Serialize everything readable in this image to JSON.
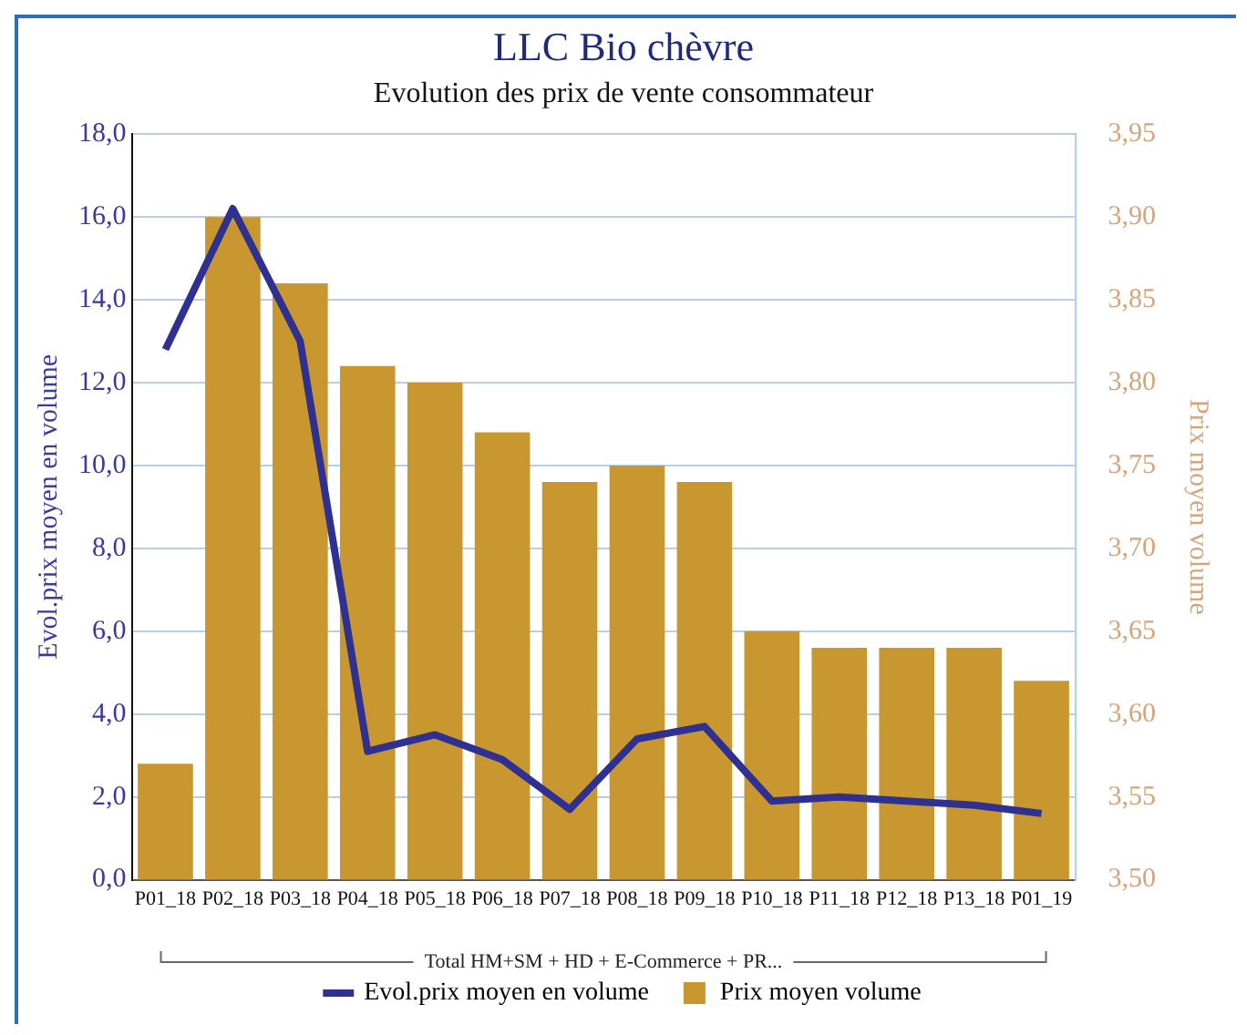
{
  "chart_data": {
    "type": "bar",
    "title": "LLC Bio chèvre",
    "subtitle": "Evolution des prix de vente consommateur",
    "ylabel": "Evol.prix moyen en volume",
    "y2label": "Prix moyen volume",
    "categories": [
      "P01_18",
      "P02_18",
      "P03_18",
      "P04_18",
      "P05_18",
      "P06_18",
      "P07_18",
      "P08_18",
      "P09_18",
      "P10_18",
      "P11_18",
      "P12_18",
      "P13_18",
      "P01_19"
    ],
    "series": [
      {
        "name": "Evol.prix moyen en volume",
        "type": "line",
        "color": "#2e3192",
        "values": [
          12.8,
          16.2,
          13.0,
          3.1,
          3.5,
          2.9,
          1.7,
          3.4,
          3.7,
          1.9,
          2.0,
          1.9,
          1.8,
          1.6
        ]
      },
      {
        "name": "Prix moyen volume",
        "axis": "y2",
        "color": "#c9972f",
        "values": [
          3.57,
          3.9,
          3.86,
          3.81,
          3.8,
          3.77,
          3.74,
          3.75,
          3.74,
          3.65,
          3.64,
          3.64,
          3.64,
          3.62
        ]
      }
    ],
    "ylim": [
      0,
      18
    ],
    "yticks": [
      {
        "value": 0,
        "label": "0,0"
      },
      {
        "value": 2,
        "label": "2,0"
      },
      {
        "value": 4,
        "label": "4,0"
      },
      {
        "value": 6,
        "label": "6,0"
      },
      {
        "value": 8,
        "label": "8,0"
      },
      {
        "value": 10,
        "label": "10,0"
      },
      {
        "value": 12,
        "label": "12,0"
      },
      {
        "value": 14,
        "label": "14,0"
      },
      {
        "value": 16,
        "label": "16,0"
      },
      {
        "value": 18,
        "label": "18,0"
      }
    ],
    "y2lim": [
      3.5,
      3.95
    ],
    "y2ticks": [
      {
        "value": 3.5,
        "label": "3,50"
      },
      {
        "value": 3.55,
        "label": "3,55"
      },
      {
        "value": 3.6,
        "label": "3,60"
      },
      {
        "value": 3.65,
        "label": "3,65"
      },
      {
        "value": 3.7,
        "label": "3,70"
      },
      {
        "value": 3.75,
        "label": "3,75"
      },
      {
        "value": 3.8,
        "label": "3,80"
      },
      {
        "value": 3.85,
        "label": "3,85"
      },
      {
        "value": 3.9,
        "label": "3,90"
      },
      {
        "value": 3.95,
        "label": "3,95"
      }
    ],
    "annotations": [
      "Total HM+SM + HD + E-Commerce + PR..."
    ],
    "grid": "y",
    "legend": "bottom",
    "marker": "none",
    "line_style": "solid"
  }
}
